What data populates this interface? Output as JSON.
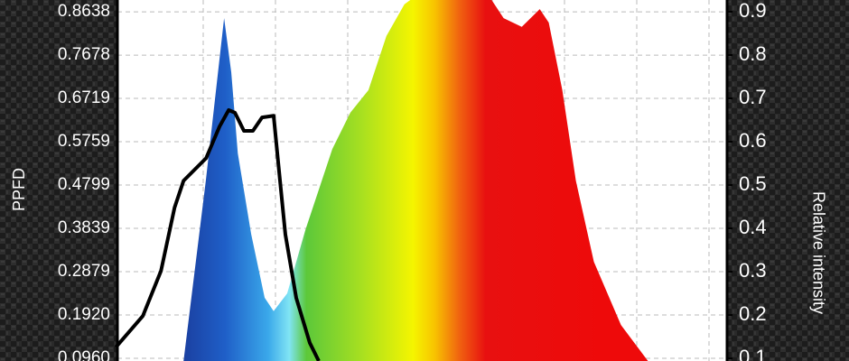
{
  "chart_data": {
    "type": "spectrum",
    "y_label": "PPFD",
    "y2_label": "Relative intensity",
    "xlim": [
      380,
      780
    ],
    "ylim": [
      0.09,
      0.89
    ],
    "yticks": [
      {
        "value": 0.096,
        "label": "0.0960"
      },
      {
        "value": 0.192,
        "label": "0.1920"
      },
      0.2879,
      0.3839,
      0.4799,
      0.5759,
      0.6719,
      0.7678,
      0.8638
    ],
    "y2lim": [
      0.094,
      0.927
    ],
    "y2ticks": [
      0.1,
      0.2,
      0.3,
      0.4,
      0.5,
      0.6,
      0.7,
      0.8,
      0.9
    ],
    "grid": true,
    "series": [
      {
        "kind": "area",
        "axis": "y2",
        "x": [
          423.4,
          438,
          450,
          454.7,
          459,
          467.8,
          476.6,
          482.5,
          491.4,
          503.3,
          521,
          532.8,
          544.7,
          556.5,
          568.3,
          580.2,
          598,
          621.6,
          633.4,
          645.3,
          657.1,
          663,
          671.9,
          680.8,
          692.6,
          710.4,
          728.1
        ],
        "values": [
          0.094,
          0.51,
          0.885,
          0.76,
          0.573,
          0.386,
          0.24,
          0.209,
          0.25,
          0.396,
          0.583,
          0.667,
          0.719,
          0.844,
          0.917,
          0.948,
          0.969,
          0.948,
          0.885,
          0.865,
          0.906,
          0.875,
          0.719,
          0.51,
          0.323,
          0.177,
          0.094
        ]
      },
      {
        "kind": "line",
        "axis": "y2",
        "color": "#000000",
        "x": [
          379,
          396.7,
          408.6,
          417.5,
          423.4,
          438.2,
          447,
          453,
          457.1,
          463,
          468.9,
          474.9,
          482.5,
          485.5,
          490.2,
          497.3,
          506.2,
          512.1
        ],
        "values": [
          0.126,
          0.198,
          0.302,
          0.448,
          0.51,
          0.562,
          0.635,
          0.673,
          0.667,
          0.625,
          0.625,
          0.656,
          0.66,
          0.552,
          0.386,
          0.24,
          0.136,
          0.094
        ]
      }
    ]
  }
}
